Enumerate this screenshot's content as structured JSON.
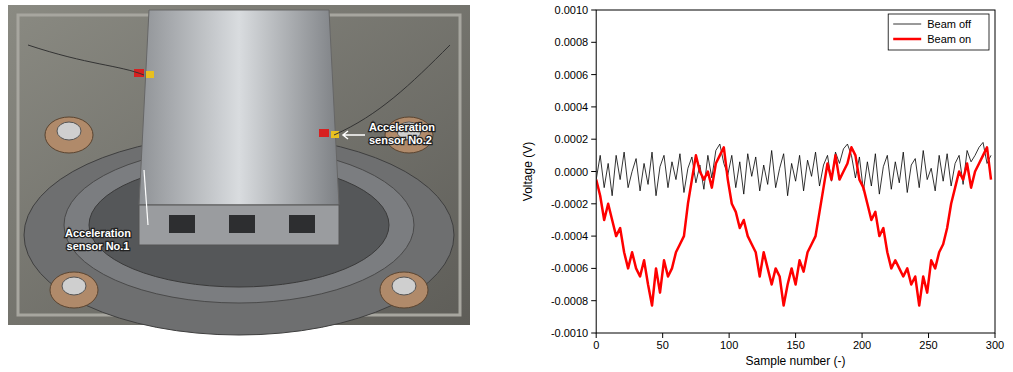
{
  "photo": {
    "labels": [
      "Acceleration sensor No.1",
      "Acceleration sensor No.2"
    ]
  },
  "chart_data": {
    "type": "line",
    "x_label": "Sample number (-)",
    "y_label": "Voltage (V)",
    "xlim": [
      0,
      300
    ],
    "xticks": [
      0,
      50,
      100,
      150,
      200,
      250,
      300
    ],
    "ylim": [
      -0.001,
      0.001
    ],
    "yticks": [
      {
        "value": -0.001,
        "label": "-0.0010"
      },
      {
        "value": -0.0008,
        "label": "-0.0008"
      },
      {
        "value": -0.0006,
        "label": "-0.0006"
      },
      {
        "value": -0.0004,
        "label": "-0.0004"
      },
      {
        "value": -0.0002,
        "label": "-0.0002"
      },
      {
        "value": 0,
        "label": "0.0000"
      },
      {
        "value": 0.0002,
        "label": "0.0002"
      },
      {
        "value": 0.0004,
        "label": "0.0004"
      },
      {
        "value": 0.0006,
        "label": "0.0006"
      },
      {
        "value": 0.0008,
        "label": "0.0008"
      },
      {
        "value": 0.001,
        "label": "0.0010"
      }
    ],
    "grid": false,
    "legend": "upper right",
    "x": [
      0,
      3,
      6,
      9,
      12,
      15,
      18,
      21,
      24,
      27,
      30,
      33,
      36,
      39,
      42,
      45,
      48,
      51,
      54,
      57,
      60,
      63,
      66,
      69,
      72,
      75,
      78,
      81,
      84,
      87,
      90,
      93,
      96,
      99,
      102,
      105,
      108,
      111,
      114,
      117,
      120,
      123,
      126,
      129,
      132,
      135,
      138,
      141,
      144,
      147,
      150,
      153,
      156,
      159,
      162,
      165,
      168,
      171,
      174,
      177,
      180,
      183,
      186,
      189,
      192,
      195,
      198,
      201,
      204,
      207,
      210,
      213,
      216,
      219,
      222,
      225,
      228,
      231,
      234,
      237,
      240,
      243,
      246,
      249,
      252,
      255,
      258,
      261,
      264,
      267,
      270,
      273,
      276,
      279,
      282,
      285,
      288,
      291,
      294,
      297
    ],
    "series": [
      {
        "name": "Beam off",
        "color": "#000000",
        "line_style": "thin",
        "values": [
          -5e-05,
          0.0001,
          -0.0001,
          5e-05,
          -0.00015,
          0.0001,
          -5e-05,
          0.00012,
          -0.0001,
          0.0,
          8e-05,
          -0.00012,
          5e-05,
          -8e-05,
          0.00012,
          -0.00015,
          3e-05,
          0.0001,
          -0.0001,
          6e-05,
          -5e-05,
          0.00011,
          -0.00013,
          2e-05,
          9e-05,
          -7e-05,
          4e-05,
          -0.00011,
          0.0001,
          -4e-05,
          0.00013,
          0.00017,
          5e-05,
          -2e-05,
          0.0001,
          -0.0001,
          6e-05,
          -0.00014,
          0.00011,
          -3e-05,
          9e-05,
          -0.00012,
          4e-05,
          -8e-05,
          0.00013,
          -0.0001,
          2e-05,
          0.00011,
          -0.00015,
          5e-05,
          -6e-05,
          0.0001,
          -0.00012,
          7e-05,
          -3e-05,
          0.00012,
          -9e-05,
          4e-05,
          0.0001,
          -6e-05,
          0.00012,
          5e-05,
          0.00014,
          0.00017,
          0.0001,
          -4e-05,
          9e-05,
          -0.00012,
          6e-05,
          -9e-05,
          0.00011,
          -0.00014,
          3e-05,
          0.0001,
          -0.00011,
          6e-05,
          -7e-05,
          0.00012,
          -0.00013,
          4e-05,
          8e-05,
          -0.0001,
          0.00013,
          -5e-05,
          2e-05,
          -0.00012,
          0.0001,
          -6e-05,
          0.00011,
          -9e-05,
          5e-05,
          0.0001,
          -8e-05,
          0.00013,
          6e-05,
          0.0001,
          0.00015,
          0.00018,
          5e-05,
          0.0001
        ]
      },
      {
        "name": "Beam on",
        "color": "#ff0000",
        "line_style": "thick",
        "values": [
          -5e-05,
          -0.00015,
          -0.0003,
          -0.0002,
          -0.0003,
          -0.0004,
          -0.00035,
          -0.0005,
          -0.0006,
          -0.0005,
          -0.0006,
          -0.00065,
          -0.00055,
          -0.0007,
          -0.00083,
          -0.0006,
          -0.00075,
          -0.00055,
          -0.00065,
          -0.0006,
          -0.0005,
          -0.00045,
          -0.0004,
          -0.0002,
          -5e-05,
          0.0001,
          0.0,
          -5e-05,
          0.0,
          -0.0001,
          5e-05,
          0.0001,
          0.00015,
          -5e-05,
          -0.0002,
          -0.00025,
          -0.00035,
          -0.0003,
          -0.0004,
          -0.00045,
          -0.0005,
          -0.00065,
          -0.0005,
          -0.0006,
          -0.0007,
          -0.0006,
          -0.00065,
          -0.00083,
          -0.0007,
          -0.0006,
          -0.0007,
          -0.00055,
          -0.00062,
          -0.0005,
          -0.00045,
          -0.0004,
          -0.00025,
          -0.0001,
          5e-05,
          -5e-05,
          0.0001,
          -5e-05,
          0.0,
          5e-05,
          0.00015,
          0.0001,
          -5e-05,
          -0.0001,
          -0.0002,
          -0.0003,
          -0.00025,
          -0.0004,
          -0.00035,
          -0.0005,
          -0.0006,
          -0.00055,
          -0.0006,
          -0.00065,
          -0.0006,
          -0.0007,
          -0.00065,
          -0.00083,
          -0.00065,
          -0.00075,
          -0.00055,
          -0.0006,
          -0.0005,
          -0.00045,
          -0.00035,
          -0.0002,
          -0.0001,
          0.0,
          -5e-05,
          5e-05,
          -0.0001,
          0.0,
          5e-05,
          0.0001,
          0.00015,
          -5e-05
        ]
      }
    ]
  }
}
